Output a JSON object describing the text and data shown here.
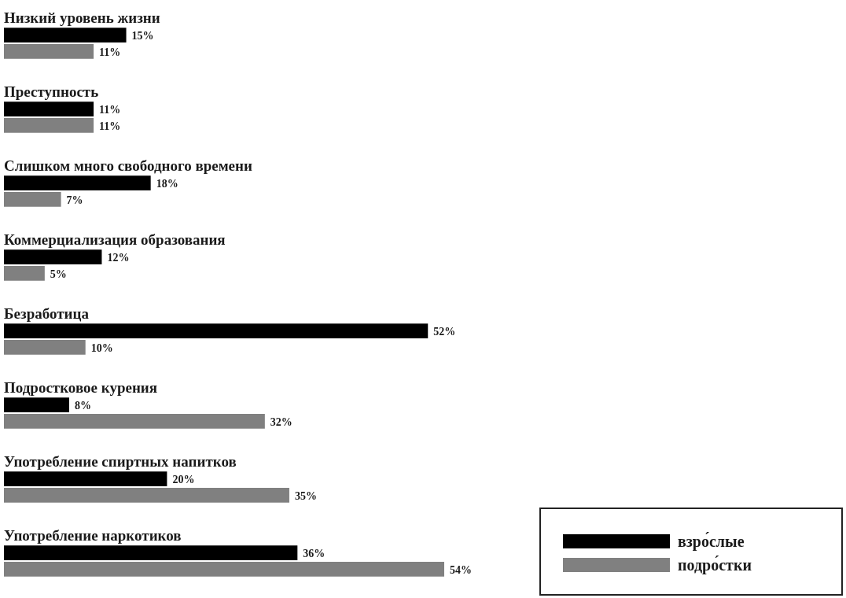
{
  "chart_data": {
    "type": "bar",
    "orientation": "horizontal",
    "categories": [
      "Низкий уровень жизни",
      "Преступность",
      "Слишком много свободного времени",
      "Коммерциализация образования",
      "Безработица",
      "Подростковое курения",
      "Употребление спиртных напитков",
      "Употребление наркотиков"
    ],
    "series": [
      {
        "name": "взро́слые",
        "color": "#000000",
        "values": [
          15,
          11,
          18,
          12,
          52,
          8,
          20,
          36
        ],
        "value_labels": [
          "15%",
          "11%",
          "18%",
          "12%",
          "52%",
          "8%",
          "20%",
          "36%"
        ]
      },
      {
        "name": "подро́стки",
        "color": "#808080",
        "values": [
          11,
          11,
          7,
          5,
          10,
          32,
          35,
          54
        ],
        "value_labels": [
          "11%",
          "11%",
          "7%",
          "5%",
          "10%",
          "32%",
          "35%",
          "54%"
        ]
      }
    ],
    "legend": "bottom right",
    "tick_labels": false
  }
}
